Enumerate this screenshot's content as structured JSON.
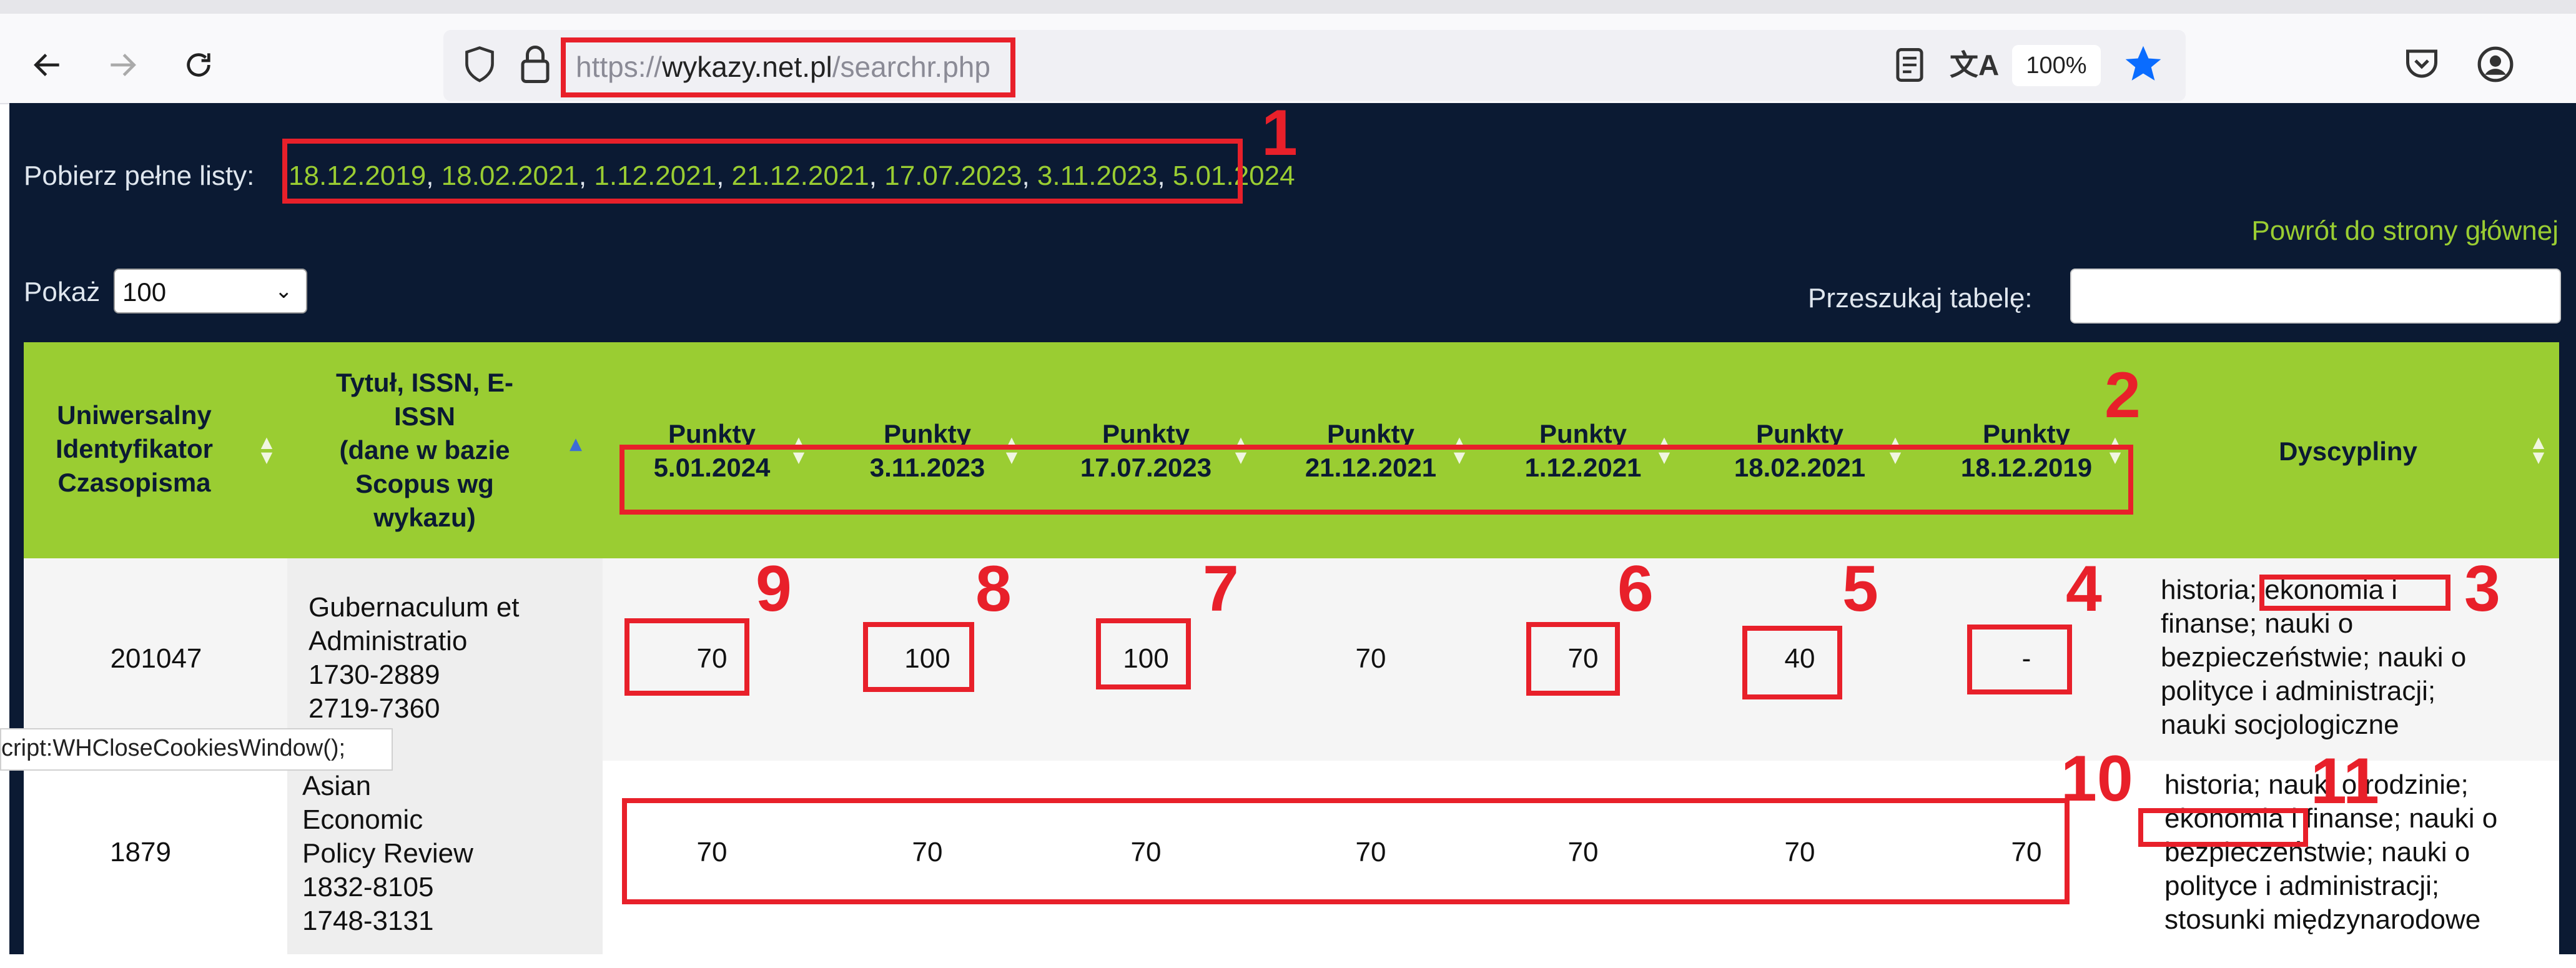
{
  "browser": {
    "url_prefix": "https://",
    "url_domain": "wykazy.net.pl",
    "url_path": "/searchr.php",
    "zoom": "100%",
    "icons": [
      "back-arrow-icon",
      "forward-arrow-icon",
      "reload-icon",
      "shield-icon",
      "lock-icon",
      "reader-view-icon",
      "translate-icon",
      "bookmark-star-icon",
      "pocket-icon",
      "account-icon"
    ]
  },
  "header": {
    "download_label": "Pobierz pełne listy:",
    "download_links": [
      "18.12.2019",
      "18.02.2021",
      "1.12.2021",
      "21.12.2021",
      "17.07.2023",
      "3.11.2023",
      "5.01.2024"
    ],
    "home_link": "Powrót do strony głównej",
    "show_label": "Pokaż",
    "show_value": "100",
    "search_label": "Przeszukaj tabelę:"
  },
  "table": {
    "columns": {
      "uid": [
        "Uniwersalny",
        "Identyfikator",
        "Czasopisma"
      ],
      "title": [
        "Tytuł, ISSN, E-",
        "ISSN",
        "(dane w bazie",
        "Scopus wg",
        "wykazu)"
      ],
      "points_label": "Punkty",
      "points_dates": [
        "5.01.2024",
        "3.11.2023",
        "17.07.2023",
        "21.12.2021",
        "1.12.2021",
        "18.02.2021",
        "18.12.2019"
      ],
      "disciplines": "Dyscypliny"
    },
    "rows": [
      {
        "uid": "201047",
        "title_lines": [
          "Gubernaculum et",
          "Administratio",
          "1730-2889",
          "2719-7360"
        ],
        "points": [
          "70",
          "100",
          "100",
          "70",
          "70",
          "40",
          "-"
        ],
        "disciplines_lines": [
          "historia; ekonomia i",
          "finanse; nauki o",
          "bezpieczeństwie; nauki o",
          "polityce i administracji;",
          "nauki socjologiczne"
        ]
      },
      {
        "uid": "1879",
        "title_lines": [
          "Asian",
          "Economic",
          "Policy Review",
          "1832-8105",
          "1748-3131"
        ],
        "points": [
          "70",
          "70",
          "70",
          "70",
          "70",
          "70",
          "70"
        ],
        "disciplines_lines": [
          "historia; nauki o rodzinie;",
          "ekonomia i finanse; nauki o",
          "bezpieczeństwie; nauki o",
          "polityce i administracji;",
          "stosunki międzynarodowe"
        ]
      }
    ]
  },
  "status_tooltip": "cript:WHCloseCookiesWindow();",
  "annotations": [
    "1",
    "2",
    "3",
    "4",
    "5",
    "6",
    "7",
    "8",
    "9",
    "10",
    "11"
  ]
}
